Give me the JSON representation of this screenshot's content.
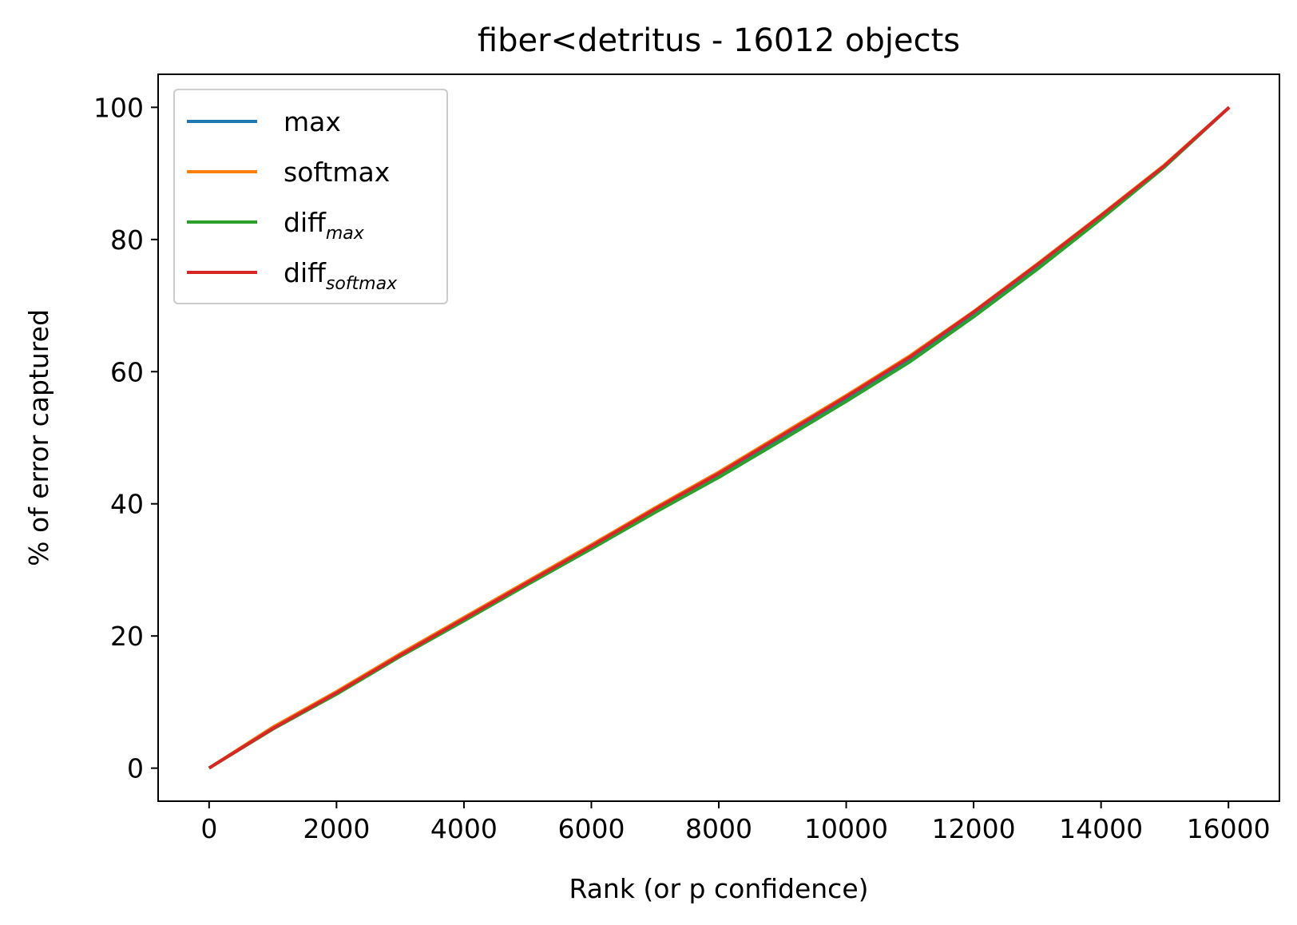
{
  "chart_data": {
    "type": "line",
    "title": "fiber<detritus - 16012 objects",
    "xlabel": "Rank (or p confidence)",
    "ylabel": "% of error captured",
    "xlim": [
      -800,
      16800
    ],
    "ylim": [
      -5,
      105
    ],
    "xticks": [
      0,
      2000,
      4000,
      6000,
      8000,
      10000,
      12000,
      14000,
      16000
    ],
    "yticks": [
      0,
      20,
      40,
      60,
      80,
      100
    ],
    "xtick_labels": [
      "0",
      "2000",
      "4000",
      "6000",
      "8000",
      "10000",
      "12000",
      "14000",
      "16000"
    ],
    "ytick_labels": [
      "0",
      "20",
      "40",
      "60",
      "80",
      "100"
    ],
    "grid": false,
    "legend_position": "upper-left",
    "series": [
      {
        "name": "max",
        "name_main": "max",
        "name_sub": "",
        "color": "#1f77b4",
        "x": [
          0,
          1000,
          2000,
          3000,
          4000,
          5000,
          6000,
          7000,
          8000,
          9000,
          10000,
          11000,
          12000,
          13000,
          14000,
          15000,
          16012
        ],
        "y": [
          0,
          6.0,
          11.3,
          17.0,
          22.5,
          28.0,
          33.5,
          39.0,
          44.4,
          50.2,
          56.0,
          62.0,
          68.8,
          76.0,
          83.5,
          91.2,
          100
        ]
      },
      {
        "name": "softmax",
        "name_main": "softmax",
        "name_sub": "",
        "color": "#ff7f0e",
        "x": [
          0,
          1000,
          2000,
          3000,
          4000,
          5000,
          6000,
          7000,
          8000,
          9000,
          10000,
          11000,
          12000,
          13000,
          14000,
          15000,
          16012
        ],
        "y": [
          0,
          6.2,
          11.6,
          17.3,
          22.8,
          28.3,
          33.8,
          39.4,
          44.8,
          50.6,
          56.4,
          62.4,
          69.1,
          76.3,
          83.7,
          91.3,
          100
        ]
      },
      {
        "name": "diff_max",
        "name_main": "diff",
        "name_sub": "max",
        "color": "#2ca02c",
        "x": [
          0,
          1000,
          2000,
          3000,
          4000,
          5000,
          6000,
          7000,
          8000,
          9000,
          10000,
          11000,
          12000,
          13000,
          14000,
          15000,
          16012
        ],
        "y": [
          0,
          5.9,
          11.2,
          16.9,
          22.3,
          27.8,
          33.2,
          38.7,
          44.0,
          49.7,
          55.5,
          61.5,
          68.3,
          75.5,
          83.1,
          91.0,
          100
        ]
      },
      {
        "name": "diff_softmax",
        "name_main": "diff",
        "name_sub": "softmax",
        "color": "#d62728",
        "x": [
          0,
          1000,
          2000,
          3000,
          4000,
          5000,
          6000,
          7000,
          8000,
          9000,
          10000,
          11000,
          12000,
          13000,
          14000,
          15000,
          16012
        ],
        "y": [
          0,
          6.0,
          11.4,
          17.1,
          22.6,
          28.1,
          33.6,
          39.2,
          44.6,
          50.4,
          56.2,
          62.2,
          69.0,
          76.2,
          83.6,
          91.2,
          100
        ]
      }
    ]
  }
}
